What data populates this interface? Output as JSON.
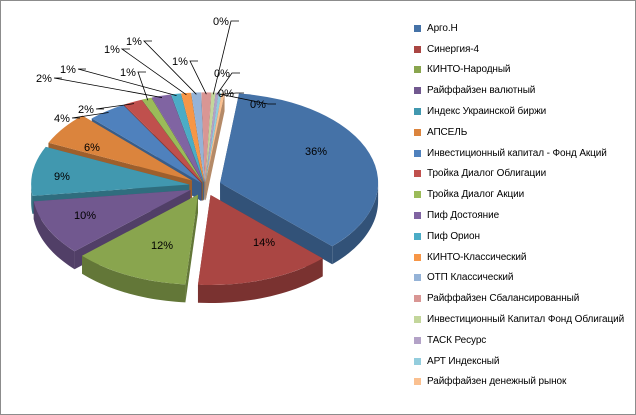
{
  "chart_data": {
    "type": "pie",
    "title": "",
    "legend_position": "right",
    "series": [
      {
        "name": "Арго.Н",
        "value": 36,
        "label": "36%",
        "color": "#4572a7"
      },
      {
        "name": "Синергия-4",
        "value": 14,
        "label": "14%",
        "color": "#aa4643"
      },
      {
        "name": "КИНТО-Народный",
        "value": 12,
        "label": "12%",
        "color": "#89a54e"
      },
      {
        "name": "Райффайзен валютный",
        "value": 10,
        "label": "10%",
        "color": "#71588f"
      },
      {
        "name": "Индекс Украинской биржи",
        "value": 9,
        "label": "9%",
        "color": "#4198af"
      },
      {
        "name": "АПСЕЛЬ",
        "value": 6,
        "label": "6%",
        "color": "#db843d"
      },
      {
        "name": "Инвестиционный капитал - Фонд Акций",
        "value": 4,
        "label": "4%",
        "color": "#4f81bd"
      },
      {
        "name": "Тройка Диалог Облигации",
        "value": 2,
        "label": "2%",
        "color": "#c0504d"
      },
      {
        "name": "Тройка Диалог Акции",
        "value": 1,
        "label": "1%",
        "color": "#9bbb59"
      },
      {
        "name": "Пиф Достояние",
        "value": 2,
        "label": "2%",
        "color": "#8064a2"
      },
      {
        "name": "Пиф Орион",
        "value": 1,
        "label": "1%",
        "color": "#4bacc6"
      },
      {
        "name": "КИНТО-Классический",
        "value": 1,
        "label": "1%",
        "color": "#f79646"
      },
      {
        "name": "ОТП Классический",
        "value": 1,
        "label": "1%",
        "color": "#95b3d7"
      },
      {
        "name": "Райффайзен Сбалансированный",
        "value": 1,
        "label": "1%",
        "color": "#d99694"
      },
      {
        "name": "Инвестиционный Капитал Фонд Облигаций",
        "value": 0.4,
        "label": "0%",
        "color": "#c3d69b"
      },
      {
        "name": "ТАСК Ресурс",
        "value": 0.3,
        "label": "0%",
        "color": "#b3a2c7"
      },
      {
        "name": "АРТ Индексный",
        "value": 0.3,
        "label": "0%",
        "color": "#93cddd"
      },
      {
        "name": "Райффайзен денежный рынок",
        "value": 0.3,
        "label": "0%",
        "color": "#fac090"
      }
    ]
  }
}
